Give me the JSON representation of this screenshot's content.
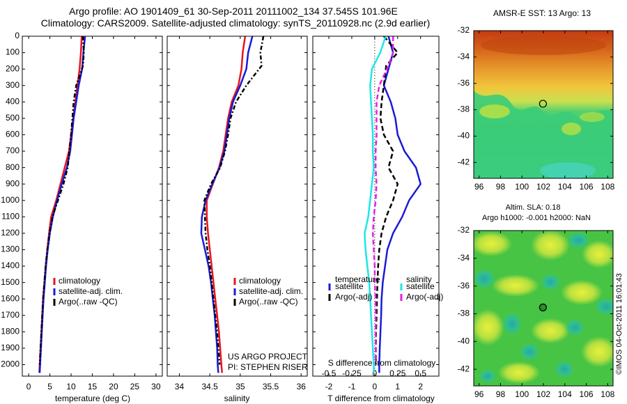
{
  "header": {
    "line1": "Argo profile: AO 1901409_61 30-Sep-2011 20111002_134 37.545S 101.96E",
    "line2": "Climatology: CARS2009. Satellite-adjusted climatology: synTS_20110928.nc (2.9d earlier)"
  },
  "credits": {
    "project": "US ARGO PROJECT",
    "pi": "PI: STEPHEN RISER"
  },
  "map1": {
    "title": "AMSR-E SST: 13 Argo: 13"
  },
  "map2": {
    "title1": "Altim. SLA: 0.18",
    "title2": "Argo h1000: -0.001 h2000: NaN"
  },
  "watermark": "©IMOS 04-Oct-2011 16:01:43",
  "colors": {
    "red": "#e8141e",
    "blue": "#1a1ad6",
    "black": "#000000",
    "cyan": "#1ee6e6",
    "magenta": "#e61ee6"
  },
  "chart_data": [
    {
      "type": "line",
      "xlabel": "temperature (deg C)",
      "ylabel": "",
      "xlim": [
        -1.5,
        31.5
      ],
      "ylim": [
        2070,
        0
      ],
      "xticks": [
        0,
        5,
        10,
        15,
        20,
        25,
        30
      ],
      "yticks": [
        0,
        100,
        200,
        300,
        400,
        500,
        600,
        700,
        800,
        900,
        1000,
        1100,
        1200,
        1300,
        1400,
        1500,
        1600,
        1700,
        1800,
        1900,
        2000
      ],
      "series": [
        {
          "name": "climatology",
          "color": "#e8141e",
          "dash": "",
          "x": [
            12.5,
            12.3,
            12.0,
            11.5,
            11.0,
            10.5,
            10.0,
            9.5,
            8.5,
            7.5,
            6.5,
            5.3,
            4.8,
            4.4,
            4.0,
            3.7,
            3.4,
            3.2,
            3.0,
            2.8,
            2.6,
            2.5
          ],
          "y": [
            0,
            100,
            200,
            300,
            400,
            500,
            600,
            700,
            800,
            900,
            1000,
            1100,
            1200,
            1300,
            1400,
            1500,
            1600,
            1700,
            1800,
            1900,
            2000,
            2050
          ]
        },
        {
          "name": "satellite-adj. clim.",
          "color": "#1a1ad6",
          "dash": "",
          "x": [
            13.3,
            12.9,
            12.6,
            11.8,
            11.2,
            10.6,
            10.2,
            9.8,
            9.0,
            7.8,
            6.7,
            5.7,
            5.0,
            4.5,
            4.1,
            3.8,
            3.5,
            3.3,
            3.1,
            2.9,
            2.7,
            2.6
          ],
          "y": [
            0,
            100,
            200,
            300,
            400,
            500,
            600,
            700,
            800,
            900,
            1000,
            1100,
            1200,
            1300,
            1400,
            1500,
            1600,
            1700,
            1800,
            1900,
            2000,
            2050
          ]
        },
        {
          "name": "Argo(..raw -QC)",
          "color": "#000000",
          "dash": "6,3,2,3",
          "x": [
            12.8,
            13.0,
            12.8,
            11.2,
            10.6,
            10.3,
            10.0,
            9.6,
            9.2,
            8.2,
            6.9,
            5.6,
            4.9,
            4.4,
            4.0,
            3.7,
            3.4,
            3.2,
            3.0,
            2.8,
            2.6
          ],
          "y": [
            0,
            100,
            180,
            300,
            400,
            500,
            600,
            700,
            800,
            900,
            1000,
            1100,
            1200,
            1300,
            1400,
            1500,
            1600,
            1700,
            1800,
            1900,
            2000
          ]
        }
      ],
      "legend": "lower-left"
    },
    {
      "type": "line",
      "xlabel": "salinity",
      "ylabel": "",
      "xlim": [
        33.8,
        36.1
      ],
      "ylim": [
        2070,
        0
      ],
      "xticks": [
        34,
        34.5,
        35,
        35.5,
        36
      ],
      "xticklabels": [
        "34",
        "34.5",
        "35",
        "35.5",
        "36"
      ],
      "series": [
        {
          "name": "climatology",
          "color": "#e8141e",
          "dash": "",
          "x": [
            35.08,
            35.04,
            35.02,
            34.97,
            34.86,
            34.8,
            34.76,
            34.72,
            34.65,
            34.55,
            34.45,
            34.45,
            34.47,
            34.5,
            34.53,
            34.56,
            34.59,
            34.62,
            34.65,
            34.67,
            34.69,
            34.7
          ],
          "y": [
            0,
            100,
            200,
            300,
            400,
            500,
            600,
            700,
            800,
            900,
            1000,
            1100,
            1200,
            1300,
            1400,
            1500,
            1600,
            1700,
            1800,
            1900,
            2000,
            2050
          ]
        },
        {
          "name": "satellite-adj. clim.",
          "color": "#1a1ad6",
          "dash": "",
          "x": [
            35.2,
            35.13,
            35.1,
            35.0,
            34.88,
            34.82,
            34.78,
            34.74,
            34.66,
            34.54,
            34.43,
            34.37,
            34.36,
            34.42,
            34.48,
            34.52,
            34.55,
            34.58,
            34.6,
            34.62,
            34.63,
            34.64
          ],
          "y": [
            0,
            100,
            200,
            300,
            400,
            500,
            600,
            700,
            800,
            900,
            1000,
            1100,
            1200,
            1300,
            1400,
            1500,
            1600,
            1700,
            1800,
            1900,
            2000,
            2050
          ]
        },
        {
          "name": "Argo(..raw -QC)",
          "color": "#000000",
          "dash": "6,3,2,3",
          "x": [
            35.38,
            35.33,
            35.35,
            35.1,
            34.93,
            34.84,
            34.8,
            34.75,
            34.67,
            34.52,
            34.41,
            34.42,
            34.43,
            34.46,
            34.5,
            34.53,
            34.56,
            34.59,
            34.62,
            34.64,
            34.66
          ],
          "y": [
            0,
            100,
            180,
            300,
            400,
            500,
            600,
            700,
            800,
            900,
            1000,
            1100,
            1200,
            1300,
            1400,
            1500,
            1600,
            1700,
            1800,
            1900,
            2000
          ]
        }
      ],
      "legend": "lower-left"
    },
    {
      "type": "line",
      "xlabel": "T difference from climatology",
      "xlabel_top": "S difference from climatology",
      "ylabel": "",
      "xlim": [
        -2.7,
        2.8
      ],
      "ylim": [
        2070,
        0
      ],
      "xticks": [
        -2,
        -1,
        0,
        1,
        2
      ],
      "xticks_top": [
        -0.5,
        -0.25,
        0,
        0.25,
        0.5
      ],
      "xticklabels_top": [
        "-0.5",
        "-0.25",
        "0",
        "0.25",
        "0.5"
      ],
      "series": [
        {
          "name": "satellite",
          "group": "temperature",
          "color": "#1a1ad6",
          "dash": "",
          "x": [
            0.6,
            0.8,
            0.6,
            0.4,
            0.7,
            0.9,
            1.0,
            1.3,
            1.8,
            2.0,
            1.5,
            1.2,
            0.8,
            0.55,
            0.45,
            0.35,
            0.3,
            0.28,
            0.25,
            0.22,
            0.2,
            0.2
          ],
          "y": [
            0,
            100,
            200,
            300,
            400,
            500,
            600,
            700,
            800,
            900,
            1000,
            1100,
            1200,
            1300,
            1400,
            1500,
            1600,
            1700,
            1800,
            1900,
            2000,
            2050
          ]
        },
        {
          "name": "Argo(-adj)",
          "group": "temperature",
          "color": "#000000",
          "dash": "7,4",
          "x": [
            0.4,
            1.0,
            0.5,
            0.4,
            0.3,
            0.25,
            0.4,
            0.8,
            0.6,
            1.0,
            0.8,
            0.5,
            0.3,
            0.2,
            0.15,
            0.12,
            0.1,
            0.08,
            0.06,
            0.05,
            0.05
          ],
          "y": [
            0,
            100,
            180,
            300,
            400,
            500,
            600,
            700,
            800,
            900,
            1000,
            1100,
            1200,
            1300,
            1400,
            1500,
            1600,
            1700,
            1800,
            1900,
            2000
          ]
        },
        {
          "name": "satellite",
          "group": "salinity",
          "color": "#1ee6e6",
          "dash": "",
          "x": [
            0.12,
            0.06,
            -0.03,
            -0.05,
            -0.04,
            -0.03,
            -0.02,
            -0.02,
            -0.01,
            -0.03,
            -0.05,
            -0.07,
            -0.11,
            -0.1,
            -0.08,
            -0.06,
            -0.05,
            -0.04,
            -0.03,
            -0.02,
            -0.01,
            -0.01
          ],
          "y": [
            0,
            100,
            200,
            300,
            400,
            500,
            600,
            700,
            800,
            900,
            1000,
            1100,
            1200,
            1300,
            1400,
            1500,
            1600,
            1700,
            1800,
            1900,
            2000,
            2050
          ]
        },
        {
          "name": "Argo(-adj)",
          "group": "salinity",
          "color": "#e61ee6",
          "dash": "7,4",
          "x": [
            0.2,
            0.2,
            0.15,
            0.05,
            0.02,
            0.02,
            0.02,
            0.01,
            0.01,
            0.02,
            0.01,
            -0.01,
            -0.02,
            -0.01,
            0.0,
            0.0,
            0.01,
            0.01,
            0.01,
            0.01,
            0.01
          ],
          "y": [
            0,
            100,
            180,
            300,
            400,
            500,
            600,
            700,
            800,
            900,
            1000,
            1100,
            1200,
            1300,
            1400,
            1500,
            1600,
            1700,
            1800,
            1900,
            2000
          ]
        }
      ],
      "legend_groups": [
        "temperature",
        "salinity"
      ],
      "legend": "lower-center"
    },
    {
      "type": "heatmap",
      "xlim": [
        95.5,
        108.5
      ],
      "ylim": [
        -43.2,
        -32
      ],
      "xticks": [
        96,
        98,
        100,
        102,
        104,
        106,
        108
      ],
      "yticks": [
        -32,
        -34,
        -36,
        -38,
        -40,
        -42
      ],
      "marker": [
        101.96,
        -37.545
      ]
    },
    {
      "type": "heatmap",
      "xlim": [
        95.5,
        108.5
      ],
      "ylim": [
        -43.2,
        -32
      ],
      "xticks": [
        96,
        98,
        100,
        102,
        104,
        106,
        108
      ],
      "yticks": [
        -32,
        -34,
        -36,
        -38,
        -40,
        -42
      ],
      "marker": [
        101.96,
        -37.545
      ]
    }
  ]
}
